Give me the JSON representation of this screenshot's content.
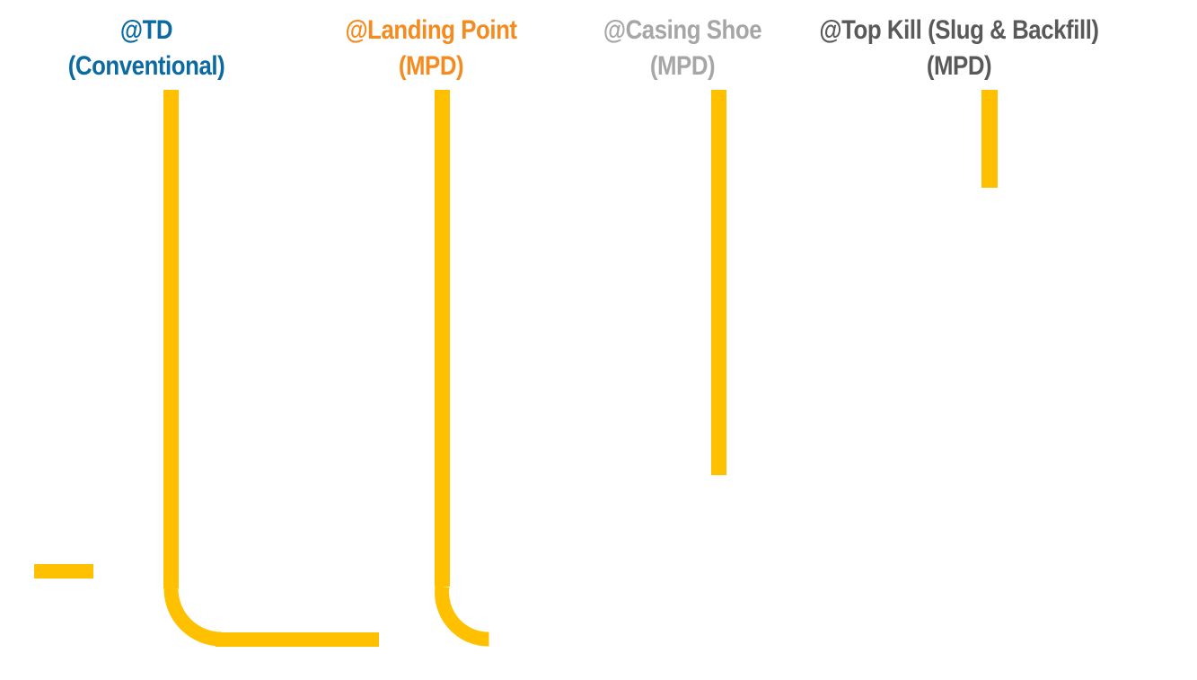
{
  "headings": {
    "td": {
      "line1": "@TD",
      "line2": "(Conventional)",
      "color": "#0b6aa2"
    },
    "landing": {
      "line1": "@Landing Point",
      "line2": "(MPD)",
      "color": "#f58a1f"
    },
    "casing": {
      "line1": "@Casing Shoe",
      "line2": "(MPD)",
      "color": "#a6a6a6"
    },
    "topkill": {
      "line1": "@Top Kill (Slug & Backfill)",
      "line2": "(MPD)",
      "color": "#595959"
    }
  },
  "wellbore_color": "#ffc000"
}
